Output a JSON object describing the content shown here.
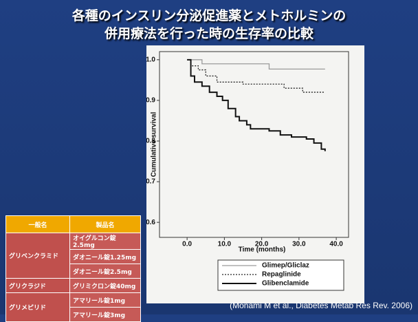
{
  "title": [
    "各種のインスリン分泌促進薬とメトホルミンの",
    "併用療法を行った時の生存率の比較"
  ],
  "chart_data": {
    "type": "step",
    "x_label": "Time (months)",
    "y_label": "Cumulative survival",
    "xlim": [
      -7.4,
      43.3
    ],
    "ylim": [
      0.563,
      1.02
    ],
    "xticks": [
      {
        "value": 0,
        "label": "0.0"
      },
      {
        "value": 10,
        "label": "10.0"
      },
      {
        "value": 20,
        "label": "20.0"
      },
      {
        "value": 30,
        "label": "30.0"
      },
      {
        "value": 40,
        "label": "40.0"
      }
    ],
    "yticks": [
      0.6,
      0.7,
      0.8,
      0.9,
      {
        "value": 1,
        "label": "1.0"
      }
    ],
    "series": [
      {
        "name": "Glimep/Gliclaz",
        "color": "#9a9a9a",
        "dash": "solid",
        "x": [
          0,
          4,
          22,
          37
        ],
        "values": [
          1.0,
          0.99,
          0.977,
          0.977
        ]
      },
      {
        "name": "Repaglinide",
        "color": "#222222",
        "dash": "dotted",
        "x": [
          0,
          1,
          3,
          5,
          8,
          15,
          26,
          31,
          37
        ],
        "values": [
          1.0,
          0.985,
          0.975,
          0.96,
          0.945,
          0.94,
          0.93,
          0.92,
          0.92
        ]
      },
      {
        "name": "Glibenclamide",
        "color": "#111111",
        "dash": "solid",
        "x": [
          0,
          1,
          2,
          4,
          6,
          8,
          9.5,
          11,
          13,
          14,
          16,
          17,
          22,
          25,
          28,
          32,
          34,
          36,
          37
        ],
        "values": [
          1.0,
          0.96,
          0.945,
          0.935,
          0.92,
          0.91,
          0.9,
          0.88,
          0.86,
          0.85,
          0.84,
          0.83,
          0.825,
          0.815,
          0.81,
          0.805,
          0.795,
          0.78,
          0.775
        ]
      }
    ]
  },
  "table": {
    "header": [
      "一般名",
      "製品名"
    ],
    "groups": [
      {
        "name": "グリベンクラミド",
        "products": [
          "オイグルコン錠2.5mg",
          "ダオニール錠1.25mg",
          "ダオニール錠2.5mg"
        ]
      },
      {
        "name": "グリクラジド",
        "products": [
          "グリミクロン錠40mg"
        ]
      },
      {
        "name": "グリメピリド",
        "products": [
          "アマリール錠1mg",
          "アマリール錠3mg"
        ]
      }
    ]
  },
  "citation": "(Monami M et al., Diabetes Metab Res Rev. 2006)"
}
